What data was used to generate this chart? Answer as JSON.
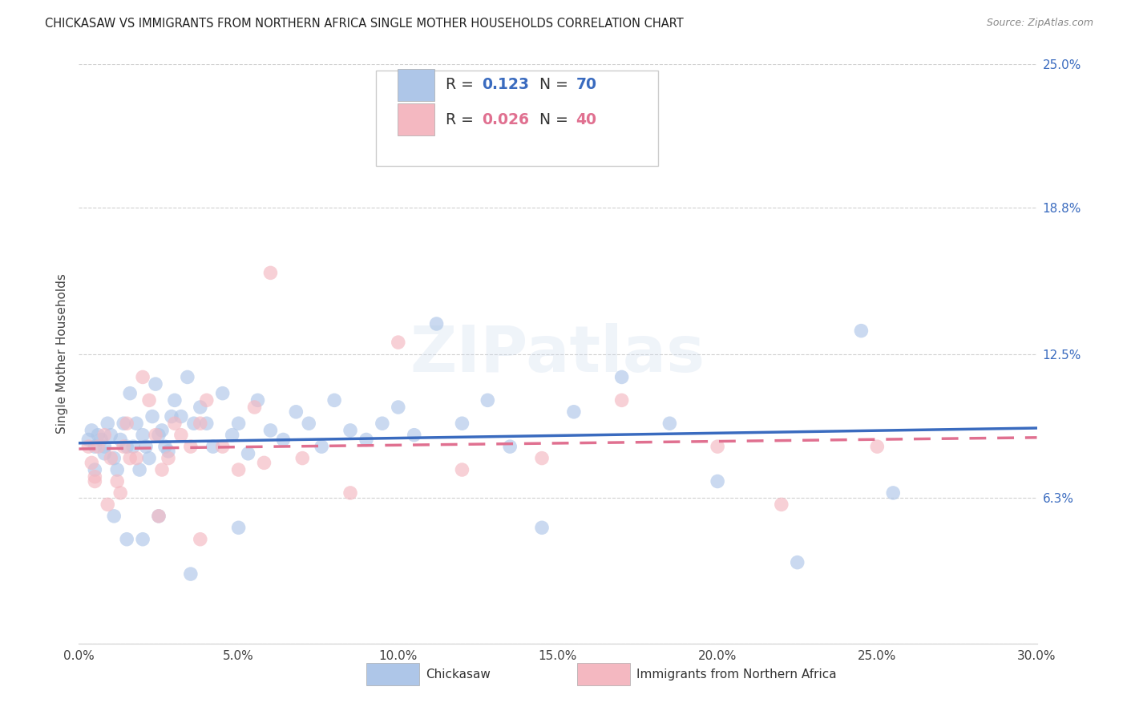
{
  "title": "CHICKASAW VS IMMIGRANTS FROM NORTHERN AFRICA SINGLE MOTHER HOUSEHOLDS CORRELATION CHART",
  "source": "Source: ZipAtlas.com",
  "ylabel": "Single Mother Households",
  "xlabel_vals": [
    0.0,
    5.0,
    10.0,
    15.0,
    20.0,
    25.0,
    30.0
  ],
  "ylabel_vals": [
    0.0,
    6.3,
    12.5,
    18.8,
    25.0
  ],
  "ylabel_labels": [
    "",
    "6.3%",
    "12.5%",
    "18.8%",
    "25.0%"
  ],
  "xmin": 0.0,
  "xmax": 30.0,
  "ymin": 0.0,
  "ymax": 25.0,
  "legend_color1": "#aec6e8",
  "legend_color2": "#f4b8c1",
  "scatter_color1": "#aec6e8",
  "scatter_color2": "#f4b8c1",
  "line_color1": "#3a6bbf",
  "line_color2": "#e07090",
  "title_color": "#222222",
  "source_color": "#888888",
  "watermark": "ZIPatlas",
  "chickasaw_x": [
    0.3,
    0.4,
    0.5,
    0.6,
    0.7,
    0.8,
    0.9,
    1.0,
    1.1,
    1.2,
    1.3,
    1.4,
    1.5,
    1.6,
    1.7,
    1.8,
    1.9,
    2.0,
    2.1,
    2.2,
    2.3,
    2.4,
    2.5,
    2.6,
    2.7,
    2.8,
    2.9,
    3.0,
    3.2,
    3.4,
    3.6,
    3.8,
    4.0,
    4.2,
    4.5,
    4.8,
    5.0,
    5.3,
    5.6,
    6.0,
    6.4,
    6.8,
    7.2,
    7.6,
    8.0,
    8.5,
    9.0,
    9.5,
    10.0,
    10.5,
    11.2,
    12.0,
    12.8,
    13.5,
    14.5,
    15.5,
    17.0,
    18.5,
    20.0,
    22.5,
    24.5,
    25.5,
    0.5,
    0.8,
    1.1,
    1.5,
    2.0,
    2.5,
    3.5,
    5.0
  ],
  "chickasaw_y": [
    8.8,
    9.2,
    8.5,
    9.0,
    8.8,
    8.2,
    9.5,
    9.0,
    8.0,
    7.5,
    8.8,
    9.5,
    8.5,
    10.8,
    8.5,
    9.5,
    7.5,
    9.0,
    8.5,
    8.0,
    9.8,
    11.2,
    9.0,
    9.2,
    8.5,
    8.3,
    9.8,
    10.5,
    9.8,
    11.5,
    9.5,
    10.2,
    9.5,
    8.5,
    10.8,
    9.0,
    9.5,
    8.2,
    10.5,
    9.2,
    8.8,
    10.0,
    9.5,
    8.5,
    10.5,
    9.2,
    8.8,
    9.5,
    10.2,
    9.0,
    13.8,
    9.5,
    10.5,
    8.5,
    5.0,
    10.0,
    11.5,
    9.5,
    7.0,
    3.5,
    13.5,
    6.5,
    7.5,
    8.5,
    5.5,
    4.5,
    4.5,
    5.5,
    3.0,
    5.0
  ],
  "immigrants_x": [
    0.3,
    0.4,
    0.5,
    0.6,
    0.8,
    1.0,
    1.2,
    1.4,
    1.5,
    1.6,
    1.8,
    2.0,
    2.2,
    2.4,
    2.6,
    2.8,
    3.0,
    3.2,
    3.5,
    3.8,
    4.0,
    4.5,
    5.0,
    5.5,
    6.0,
    7.0,
    8.5,
    10.0,
    12.0,
    14.5,
    17.0,
    20.0,
    22.0,
    25.0,
    0.5,
    0.9,
    1.3,
    2.5,
    3.8,
    5.8
  ],
  "immigrants_y": [
    8.5,
    7.8,
    7.2,
    8.5,
    9.0,
    8.0,
    7.0,
    8.5,
    9.5,
    8.0,
    8.0,
    11.5,
    10.5,
    9.0,
    7.5,
    8.0,
    9.5,
    9.0,
    8.5,
    9.5,
    10.5,
    8.5,
    7.5,
    10.2,
    16.0,
    8.0,
    6.5,
    13.0,
    7.5,
    8.0,
    10.5,
    8.5,
    6.0,
    8.5,
    7.0,
    6.0,
    6.5,
    5.5,
    4.5,
    7.8
  ]
}
